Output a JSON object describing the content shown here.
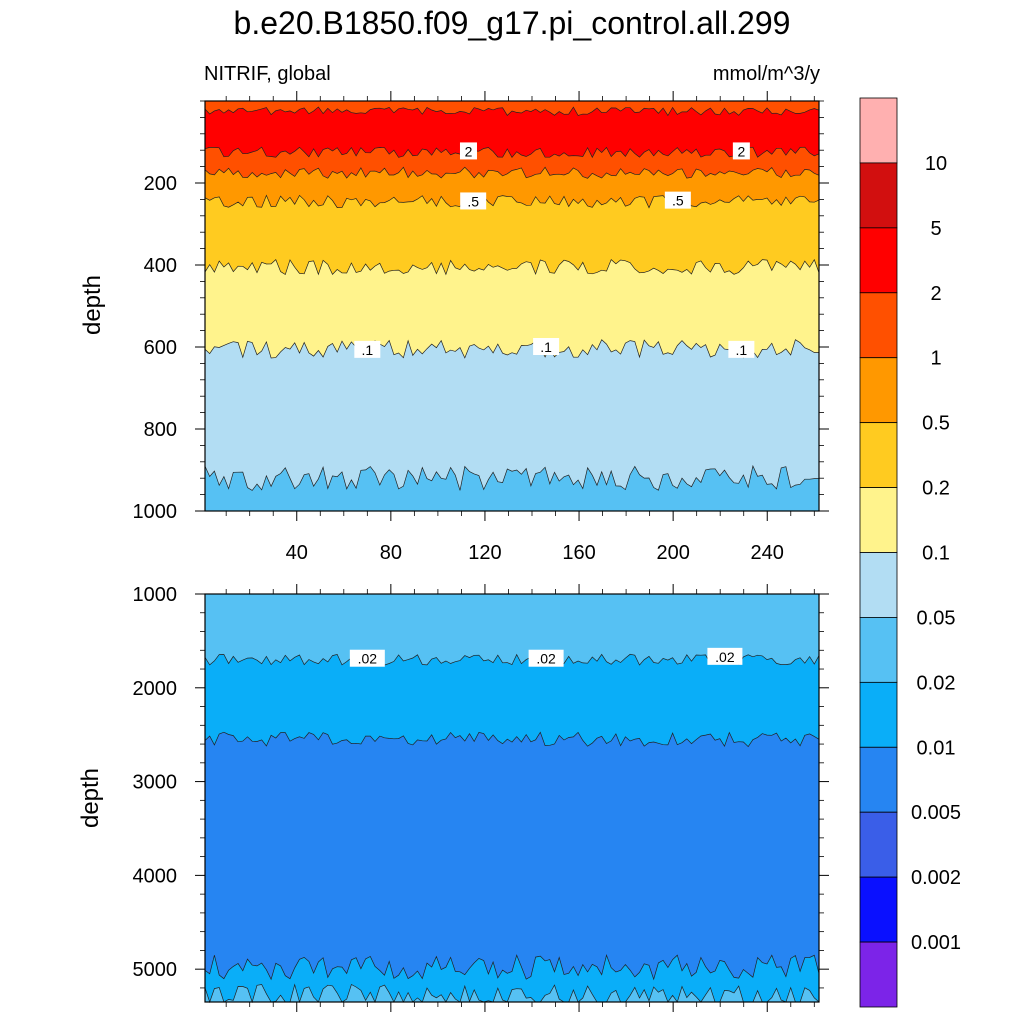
{
  "chart_data": [
    {
      "type": "contour",
      "panel": "top",
      "title": "b.e20.B1850.f09_g17.pi_control.all.299",
      "left_subtitle": "NITRIF, global",
      "right_subtitle": "mmol/m^3/y",
      "xlabel": "",
      "ylabel": "depth",
      "xlim": [
        1,
        262
      ],
      "ylim": [
        1000,
        0
      ],
      "xticks": [
        40,
        80,
        120,
        160,
        200,
        240
      ],
      "yticks": [
        200,
        400,
        600,
        800,
        1000
      ],
      "bands": [
        {
          "from_depth": 0,
          "to_depth": 25,
          "color": "#FF5000"
        },
        {
          "from_depth": 25,
          "to_depth": 125,
          "color": "#FF0000"
        },
        {
          "from_depth": 125,
          "to_depth": 175,
          "color": "#FF5000"
        },
        {
          "from_depth": 175,
          "to_depth": 245,
          "color": "#FF9800"
        },
        {
          "from_depth": 245,
          "to_depth": 405,
          "color": "#FFCB20"
        },
        {
          "from_depth": 405,
          "to_depth": 605,
          "color": "#FFF38C"
        },
        {
          "from_depth": 605,
          "to_depth": 920,
          "color": "#B2DDF3"
        },
        {
          "from_depth": 920,
          "to_depth": 1000,
          "color": "#56C1F3"
        }
      ],
      "contour_labels": [
        {
          "text": "2",
          "x": 113,
          "depth": 123
        },
        {
          "text": "2",
          "x": 229,
          "depth": 123
        },
        {
          "text": ".5",
          "x": 115,
          "depth": 245
        },
        {
          "text": ".5",
          "x": 202,
          "depth": 243
        },
        {
          "text": ".1",
          "x": 70,
          "depth": 607
        },
        {
          "text": ".1",
          "x": 146,
          "depth": 600
        },
        {
          "text": ".1",
          "x": 229,
          "depth": 607
        }
      ]
    },
    {
      "type": "contour",
      "panel": "bottom",
      "ylabel": "depth",
      "xlim": [
        1,
        262
      ],
      "ylim": [
        5350,
        1000
      ],
      "yticks": [
        1000,
        2000,
        3000,
        4000,
        5000
      ],
      "bands": [
        {
          "from_depth": 1000,
          "to_depth": 1700,
          "color": "#56C1F3"
        },
        {
          "from_depth": 1700,
          "to_depth": 2550,
          "color": "#0AAEF8"
        },
        {
          "from_depth": 2550,
          "to_depth": 4980,
          "color": "#2685F2"
        },
        {
          "from_depth": 4980,
          "to_depth": 5300,
          "color": "#0AAEF8"
        },
        {
          "from_depth": 5300,
          "to_depth": 5350,
          "color": "#56C1F3"
        }
      ],
      "contour_labels": [
        {
          "text": ".02",
          "x": 70,
          "depth": 1690
        },
        {
          "text": ".02",
          "x": 146,
          "depth": 1690
        },
        {
          "text": ".02",
          "x": 222,
          "depth": 1670
        }
      ]
    }
  ],
  "colorbar": {
    "colors": [
      "#FFB0B0",
      "#D20F0F",
      "#FF0000",
      "#FF5000",
      "#FF9800",
      "#FFCB20",
      "#FFF38C",
      "#B2DDF3",
      "#56C1F3",
      "#0AAEF8",
      "#2685F2",
      "#3A5EE8",
      "#0A10FF",
      "#7C24E8"
    ],
    "labels": [
      "10",
      "5",
      "2",
      "1",
      "0.5",
      "0.2",
      "0.1",
      "0.05",
      "0.02",
      "0.01",
      "0.005",
      "0.002",
      "0.001"
    ]
  }
}
